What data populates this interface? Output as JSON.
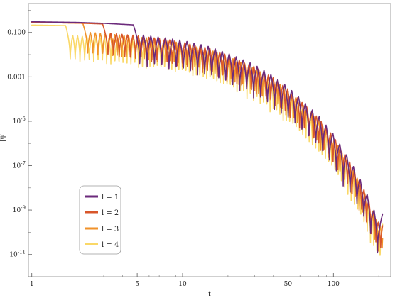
{
  "chart_data": {
    "type": "line",
    "title": "",
    "xlabel": "t",
    "ylabel": "|ψ|",
    "x_scale": "log",
    "y_scale": "log",
    "xlim": [
      0.95,
      240
    ],
    "ylim": [
      1e-12,
      2
    ],
    "x_ticks": [
      {
        "value": 1,
        "label": "1"
      },
      {
        "value": 5,
        "label": "5"
      },
      {
        "value": 10,
        "label": "10"
      },
      {
        "value": 50,
        "label": "50"
      },
      {
        "value": 100,
        "label": "100"
      }
    ],
    "y_ticks": [
      {
        "value": 0.1,
        "label": "0.100"
      },
      {
        "value": 0.001,
        "label": "0.001"
      },
      {
        "value": 1e-05,
        "base": "10",
        "exp": "-5"
      },
      {
        "value": 1e-07,
        "base": "10",
        "exp": "-7"
      },
      {
        "value": 1e-09,
        "base": "10",
        "exp": "-9"
      },
      {
        "value": 1e-11,
        "base": "10",
        "exp": "-11"
      }
    ],
    "grid": false,
    "legend_position": "bottom-left",
    "series": [
      {
        "name": "l = 1",
        "color": "#6b2a7b",
        "first_zero": 5.2,
        "ratio": 1.11,
        "dip_base": -4.6,
        "dip_slope": -0.05
      },
      {
        "name": "l = 2",
        "color": "#d8562a",
        "first_zero": 3.2,
        "ratio": 1.075,
        "dip_base": -3.6,
        "dip_slope": -0.07
      },
      {
        "name": "l = 3",
        "color": "#f0922a",
        "first_zero": 2.35,
        "ratio": 1.06,
        "dip_base": -3.5,
        "dip_slope": -0.08
      },
      {
        "name": "l = 4",
        "color": "#fad867",
        "first_zero": 1.8,
        "ratio": 1.05,
        "dip_base": -4.2,
        "dip_slope": -0.08
      }
    ],
    "envelope": {
      "x": [
        1,
        2,
        3,
        5,
        8,
        10,
        15,
        20,
        30,
        40,
        50,
        60,
        80,
        100,
        130,
        160,
        200
      ],
      "log10_y": [
        -0.55,
        -0.58,
        -0.62,
        -0.7,
        -0.85,
        -0.95,
        -1.2,
        -1.5,
        -2.0,
        -2.5,
        -3.0,
        -3.5,
        -4.3,
        -5.1,
        -6.3,
        -7.5,
        -9.0
      ]
    }
  }
}
